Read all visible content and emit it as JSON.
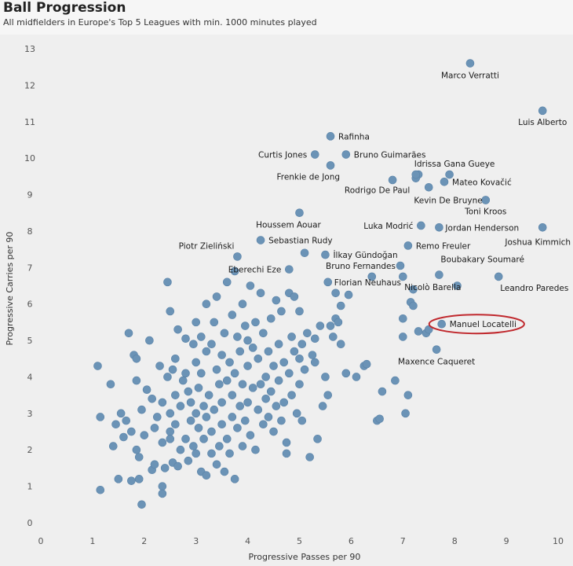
{
  "header": {
    "title": "Ball Progression",
    "subtitle": "All midfielders in Europe's Top 5 Leagues with min. 1000 minutes played"
  },
  "chart_data": {
    "type": "scatter",
    "title": "Ball Progression",
    "subtitle": "All midfielders in Europe's Top 5 Leagues with min. 1000 minutes played",
    "xlabel": "Progressive Passes per 90",
    "ylabel": "Progressive Carries per 90",
    "xlim": [
      0,
      10
    ],
    "ylim": [
      0,
      13
    ],
    "xticks": [
      "0",
      "1",
      "2",
      "3",
      "4",
      "5",
      "6",
      "7",
      "8",
      "9",
      "10"
    ],
    "yticks": [
      "0",
      "1",
      "2",
      "3",
      "4",
      "5",
      "6",
      "7",
      "8",
      "9",
      "10",
      "11",
      "12",
      "13"
    ],
    "grid": false,
    "colors": {
      "point": "#6b93b6",
      "highlight": "#c0282d",
      "background": "#efefef"
    },
    "highlight": "Manuel Locatelli",
    "labeled_points": [
      {
        "name": "Marco Verratti",
        "x": 8.3,
        "y": 12.6
      },
      {
        "name": "Luis Alberto",
        "x": 9.7,
        "y": 11.3
      },
      {
        "name": "Rafinha",
        "x": 5.6,
        "y": 10.6
      },
      {
        "name": "Curtis Jones",
        "x": 5.3,
        "y": 10.1
      },
      {
        "name": "Bruno Guimarães",
        "x": 5.9,
        "y": 10.1
      },
      {
        "name": "Idrissa Gana Gueye",
        "x": 7.25,
        "y": 9.55
      },
      {
        "name": "Frenkie de Jong",
        "x": 5.6,
        "y": 9.8
      },
      {
        "name": "Mateo Kovačić",
        "x": 7.8,
        "y": 9.35
      },
      {
        "name": "Rodrigo De Paul",
        "x": 7.5,
        "y": 9.2
      },
      {
        "name": "Kevin De Bruyne",
        "x": 8.6,
        "y": 8.85
      },
      {
        "name": "Toni Kroos",
        "x": 8.6,
        "y": 8.85
      },
      {
        "name": "Houssem Aouar",
        "x": 5.0,
        "y": 8.5
      },
      {
        "name": "Luka Modrić",
        "x": 7.35,
        "y": 8.15
      },
      {
        "name": "Jordan Henderson",
        "x": 7.7,
        "y": 8.1
      },
      {
        "name": "Joshua Kimmich",
        "x": 9.7,
        "y": 8.1
      },
      {
        "name": "Sebastian Rudy",
        "x": 4.25,
        "y": 7.75
      },
      {
        "name": "Piotr Zieliński",
        "x": 3.8,
        "y": 7.3
      },
      {
        "name": "Remo Freuler",
        "x": 7.1,
        "y": 7.6
      },
      {
        "name": "İlkay Gündoğan",
        "x": 5.5,
        "y": 7.35
      },
      {
        "name": "Boubakary Soumaré",
        "x": 7.7,
        "y": 6.8
      },
      {
        "name": "Eberechi Eze",
        "x": 4.8,
        "y": 6.95
      },
      {
        "name": "Bruno Fernandes",
        "x": 6.95,
        "y": 7.05
      },
      {
        "name": "Leandro Paredes",
        "x": 8.85,
        "y": 6.75
      },
      {
        "name": "Florian Neuhaus",
        "x": 5.55,
        "y": 6.6
      },
      {
        "name": "Nicolò Barella",
        "x": 7.0,
        "y": 6.75
      },
      {
        "name": "Manuel Locatelli",
        "x": 7.75,
        "y": 5.45
      },
      {
        "name": "Maxence Caqueret",
        "x": 7.65,
        "y": 4.75
      }
    ],
    "unlabeled_points": [
      [
        1.1,
        4.3
      ],
      [
        1.15,
        2.9
      ],
      [
        1.15,
        0.9
      ],
      [
        1.35,
        3.8
      ],
      [
        1.4,
        2.1
      ],
      [
        1.45,
        2.7
      ],
      [
        1.5,
        1.2
      ],
      [
        1.55,
        3.0
      ],
      [
        1.6,
        2.35
      ],
      [
        1.65,
        2.8
      ],
      [
        1.7,
        5.2
      ],
      [
        1.75,
        1.15
      ],
      [
        1.75,
        2.5
      ],
      [
        1.8,
        4.6
      ],
      [
        1.85,
        4.5
      ],
      [
        1.85,
        3.9
      ],
      [
        1.85,
        2.0
      ],
      [
        1.9,
        1.8
      ],
      [
        1.9,
        1.2
      ],
      [
        1.95,
        0.5
      ],
      [
        1.95,
        3.1
      ],
      [
        2.0,
        2.4
      ],
      [
        2.05,
        3.65
      ],
      [
        2.1,
        5.0
      ],
      [
        2.15,
        3.4
      ],
      [
        2.15,
        1.45
      ],
      [
        2.2,
        2.6
      ],
      [
        2.2,
        1.6
      ],
      [
        2.25,
        2.9
      ],
      [
        2.3,
        4.3
      ],
      [
        2.35,
        1.0
      ],
      [
        2.35,
        2.2
      ],
      [
        2.35,
        3.3
      ],
      [
        2.35,
        0.8
      ],
      [
        2.4,
        1.5
      ],
      [
        2.45,
        6.6
      ],
      [
        2.45,
        4.0
      ],
      [
        2.5,
        2.5
      ],
      [
        2.5,
        3.0
      ],
      [
        2.5,
        5.8
      ],
      [
        2.5,
        2.3
      ],
      [
        2.55,
        1.65
      ],
      [
        2.55,
        4.2
      ],
      [
        2.6,
        2.7
      ],
      [
        2.6,
        3.5
      ],
      [
        2.6,
        4.5
      ],
      [
        2.65,
        1.55
      ],
      [
        2.65,
        5.3
      ],
      [
        2.7,
        2.0
      ],
      [
        2.7,
        3.2
      ],
      [
        2.75,
        3.9
      ],
      [
        2.8,
        2.3
      ],
      [
        2.8,
        5.05
      ],
      [
        2.8,
        4.1
      ],
      [
        2.85,
        3.6
      ],
      [
        2.85,
        1.7
      ],
      [
        2.9,
        2.8
      ],
      [
        2.9,
        3.3
      ],
      [
        2.95,
        4.9
      ],
      [
        2.95,
        2.1
      ],
      [
        3.0,
        5.5
      ],
      [
        3.0,
        3.0
      ],
      [
        3.0,
        1.9
      ],
      [
        3.0,
        4.4
      ],
      [
        3.05,
        3.7
      ],
      [
        3.05,
        2.6
      ],
      [
        3.1,
        1.4
      ],
      [
        3.1,
        4.1
      ],
      [
        3.1,
        5.1
      ],
      [
        3.15,
        3.2
      ],
      [
        3.15,
        2.3
      ],
      [
        3.2,
        6.0
      ],
      [
        3.2,
        4.7
      ],
      [
        3.2,
        1.3
      ],
      [
        3.2,
        2.9
      ],
      [
        3.25,
        3.5
      ],
      [
        3.3,
        1.9
      ],
      [
        3.3,
        4.9
      ],
      [
        3.3,
        2.5
      ],
      [
        3.35,
        5.5
      ],
      [
        3.35,
        3.1
      ],
      [
        3.4,
        4.2
      ],
      [
        3.4,
        1.6
      ],
      [
        3.4,
        6.2
      ],
      [
        3.45,
        2.1
      ],
      [
        3.45,
        3.8
      ],
      [
        3.5,
        2.7
      ],
      [
        3.5,
        4.6
      ],
      [
        3.5,
        3.3
      ],
      [
        3.55,
        1.4
      ],
      [
        3.55,
        5.2
      ],
      [
        3.6,
        6.6
      ],
      [
        3.6,
        2.3
      ],
      [
        3.6,
        3.9
      ],
      [
        3.65,
        1.9
      ],
      [
        3.65,
        4.4
      ],
      [
        3.7,
        2.9
      ],
      [
        3.7,
        5.7
      ],
      [
        3.7,
        3.5
      ],
      [
        3.75,
        1.2
      ],
      [
        3.75,
        6.9
      ],
      [
        3.75,
        4.1
      ],
      [
        3.8,
        2.6
      ],
      [
        3.8,
        5.1
      ],
      [
        3.85,
        3.2
      ],
      [
        3.85,
        4.7
      ],
      [
        3.9,
        6.0
      ],
      [
        3.9,
        2.1
      ],
      [
        3.9,
        3.8
      ],
      [
        3.95,
        5.4
      ],
      [
        3.95,
        2.8
      ],
      [
        4.0,
        4.3
      ],
      [
        4.0,
        3.3
      ],
      [
        4.0,
        5.0
      ],
      [
        4.05,
        2.4
      ],
      [
        4.05,
        6.5
      ],
      [
        4.1,
        3.7
      ],
      [
        4.1,
        4.8
      ],
      [
        4.15,
        2.0
      ],
      [
        4.15,
        5.5
      ],
      [
        4.2,
        3.1
      ],
      [
        4.2,
        4.5
      ],
      [
        4.25,
        6.3
      ],
      [
        4.25,
        3.8
      ],
      [
        4.3,
        2.7
      ],
      [
        4.3,
        5.2
      ],
      [
        4.35,
        4.0
      ],
      [
        4.35,
        3.4
      ],
      [
        4.4,
        4.7
      ],
      [
        4.4,
        2.9
      ],
      [
        4.45,
        5.6
      ],
      [
        4.45,
        3.6
      ],
      [
        4.5,
        4.3
      ],
      [
        4.5,
        2.5
      ],
      [
        4.55,
        6.1
      ],
      [
        4.55,
        3.2
      ],
      [
        4.6,
        4.9
      ],
      [
        4.6,
        3.9
      ],
      [
        4.65,
        2.8
      ],
      [
        4.65,
        5.8
      ],
      [
        4.7,
        4.4
      ],
      [
        4.7,
        3.3
      ],
      [
        4.75,
        1.9
      ],
      [
        4.75,
        2.2
      ],
      [
        4.8,
        6.3
      ],
      [
        4.8,
        4.1
      ],
      [
        4.85,
        5.1
      ],
      [
        4.85,
        3.5
      ],
      [
        4.9,
        6.2
      ],
      [
        4.9,
        4.7
      ],
      [
        4.95,
        3.0
      ],
      [
        5.0,
        5.8
      ],
      [
        5.0,
        4.5
      ],
      [
        5.0,
        3.8
      ],
      [
        5.05,
        4.9
      ],
      [
        5.05,
        2.8
      ],
      [
        5.1,
        4.2
      ],
      [
        5.1,
        7.4
      ],
      [
        5.15,
        5.2
      ],
      [
        5.2,
        1.8
      ],
      [
        5.25,
        4.6
      ],
      [
        5.3,
        5.05
      ],
      [
        5.3,
        4.4
      ],
      [
        5.35,
        2.3
      ],
      [
        5.4,
        5.4
      ],
      [
        5.45,
        3.2
      ],
      [
        5.5,
        4.0
      ],
      [
        5.55,
        3.5
      ],
      [
        5.6,
        5.4
      ],
      [
        5.65,
        5.1
      ],
      [
        5.7,
        6.3
      ],
      [
        5.7,
        5.6
      ],
      [
        5.75,
        5.5
      ],
      [
        5.8,
        4.9
      ],
      [
        5.8,
        5.95
      ],
      [
        5.9,
        4.1
      ],
      [
        5.95,
        6.25
      ],
      [
        6.1,
        4.0
      ],
      [
        6.25,
        4.3
      ],
      [
        6.3,
        4.35
      ],
      [
        6.5,
        2.8
      ],
      [
        6.55,
        2.85
      ],
      [
        6.6,
        3.6
      ],
      [
        6.85,
        3.9
      ],
      [
        7.0,
        5.1
      ],
      [
        7.0,
        5.6
      ],
      [
        7.05,
        3.0
      ],
      [
        7.1,
        3.5
      ],
      [
        7.15,
        6.05
      ],
      [
        7.2,
        5.95
      ],
      [
        7.2,
        6.4
      ],
      [
        7.3,
        5.25
      ],
      [
        7.45,
        5.2
      ],
      [
        7.5,
        5.3
      ],
      [
        6.8,
        9.4
      ],
      [
        7.3,
        9.55
      ],
      [
        6.4,
        6.75
      ],
      [
        7.25,
        9.45
      ],
      [
        7.9,
        9.55
      ],
      [
        8.05,
        6.5
      ]
    ]
  }
}
